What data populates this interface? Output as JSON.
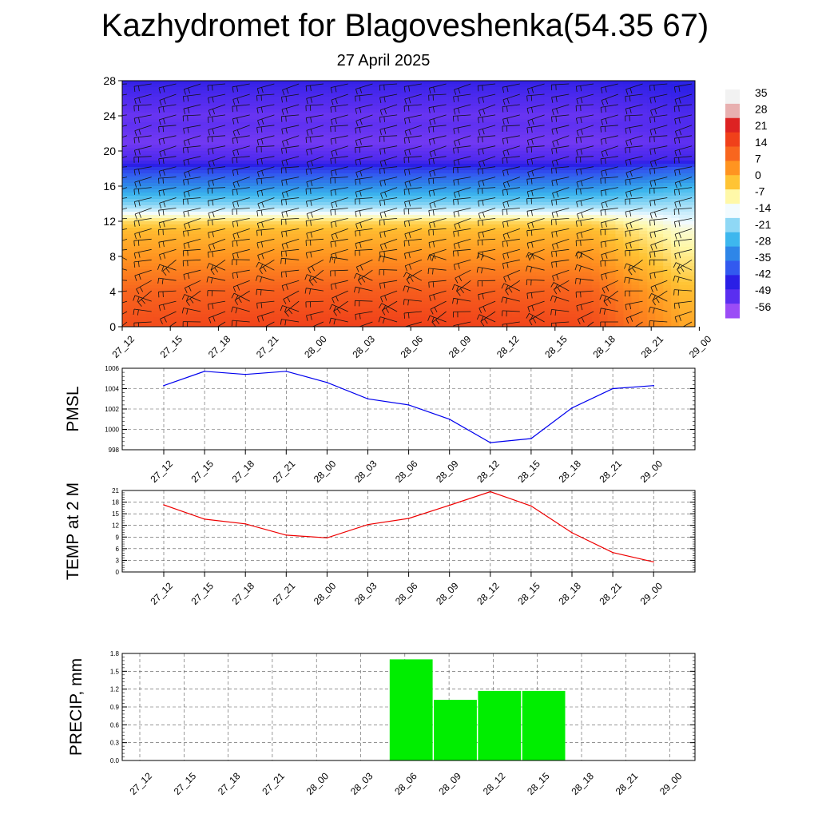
{
  "title": "Kazhydromet for Blagoveshenka(54.35 67)",
  "subtitle": "27 April 2025",
  "chart_data": [
    {
      "type": "heatmap",
      "name": "temperature-cross-section",
      "x_labels": [
        "27_12",
        "27_15",
        "27_18",
        "27_21",
        "28_00",
        "28_03",
        "28_06",
        "28_09",
        "28_12",
        "28_15",
        "28_18",
        "28_21",
        "29_00"
      ],
      "y_ticks": [
        0,
        4,
        8,
        12,
        16,
        20,
        24,
        28
      ],
      "ylim": [
        0,
        28
      ],
      "colorbar_labels": [
        "35",
        "28",
        "21",
        "14",
        "7",
        "0",
        "-7",
        "-14",
        "-21",
        "-28",
        "-35",
        "-42",
        "-49",
        "-56"
      ],
      "colorbar_colors": [
        "#f2f2f2",
        "#e8b0b0",
        "#dd2222",
        "#f0401a",
        "#f8661e",
        "#ff9420",
        "#ffc434",
        "#fff8a8",
        "#f2fbff",
        "#8fd8f5",
        "#3db7ee",
        "#2e86e8",
        "#3259ef",
        "#2a1fe6",
        "#5a2ef0",
        "#9b4cf6"
      ],
      "profiles": {
        "z": [
          0,
          4,
          8,
          11,
          12,
          13,
          14,
          16,
          18,
          19,
          21,
          23,
          24,
          26,
          28
        ],
        "base": [
          16,
          12,
          5,
          0,
          -4,
          -15,
          -22,
          -33,
          -44,
          -52,
          -56,
          -54,
          -55,
          -52,
          -48
        ],
        "end": [
          3,
          0,
          -6,
          -11,
          -15,
          -17,
          -20,
          -28,
          -40,
          -50,
          -54,
          -52,
          -52,
          -49,
          -46
        ]
      },
      "surface_temp": [
        17,
        14,
        12,
        10,
        9,
        12,
        14,
        17,
        21,
        17,
        10,
        5,
        3
      ]
    },
    {
      "type": "line",
      "name": "pmsl",
      "ylabel": "PMSL",
      "x_labels": [
        "27_12",
        "27_15",
        "27_18",
        "27_21",
        "28_00",
        "28_03",
        "28_06",
        "28_09",
        "28_12",
        "28_15",
        "28_18",
        "28_21",
        "29_00"
      ],
      "series": [
        {
          "values": [
            1004.3,
            1005.7,
            1005.4,
            1005.7,
            1004.6,
            1003.0,
            1002.4,
            1001.0,
            998.7,
            999.1,
            1002.1,
            1004.0,
            1004.3
          ]
        }
      ],
      "y_ticks": [
        998,
        1000,
        1002,
        1004,
        1006
      ],
      "ylim": [
        998,
        1006
      ],
      "color": "#0000ee"
    },
    {
      "type": "line",
      "name": "temp",
      "ylabel": "TEMP at 2 M",
      "x_labels": [
        "27_12",
        "27_15",
        "27_18",
        "27_21",
        "28_00",
        "28_03",
        "28_06",
        "28_09",
        "28_12",
        "28_15",
        "28_18",
        "28_21",
        "29_00"
      ],
      "series": [
        {
          "values": [
            17.3,
            13.6,
            12.4,
            9.5,
            8.8,
            12.2,
            13.8,
            17.2,
            20.7,
            17.0,
            10.1,
            5.0,
            2.6
          ]
        }
      ],
      "y_ticks": [
        0,
        3,
        6,
        9,
        12,
        15,
        18,
        21
      ],
      "ylim": [
        0,
        21
      ],
      "color": "#ee0000"
    },
    {
      "type": "bar",
      "name": "precip",
      "ylabel": "PRECIP, mm",
      "x_labels": [
        "27_12",
        "27_15",
        "27_18",
        "27_21",
        "28_00",
        "28_03",
        "28_06",
        "28_09",
        "28_12",
        "28_15",
        "28_18",
        "28_21",
        "29_00"
      ],
      "values": [
        0,
        0,
        0,
        0,
        0,
        0,
        1.7,
        1.02,
        1.17,
        1.17,
        0,
        0,
        0
      ],
      "y_ticks": [
        "0.0",
        "0.3",
        "0.6",
        "0.9",
        "1.2",
        "1.5",
        "1.8"
      ],
      "ylim": [
        0,
        1.8
      ],
      "color": "#00ee00"
    }
  ]
}
